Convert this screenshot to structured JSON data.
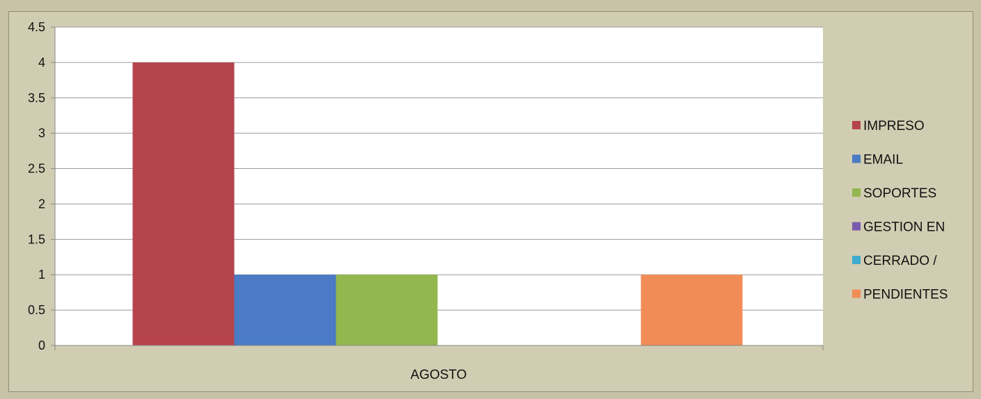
{
  "chart_data": {
    "type": "bar",
    "categories": [
      "AGOSTO"
    ],
    "series": [
      {
        "name": "IMPRESO",
        "values": [
          4
        ],
        "color": "#b5444f"
      },
      {
        "name": "EMAIL",
        "values": [
          1
        ],
        "color": "#4a7bc4"
      },
      {
        "name": "SOPORTES",
        "values": [
          1
        ],
        "color": "#93b74f"
      },
      {
        "name": "GESTION EN",
        "values": [
          0
        ],
        "color": "#7a5aae"
      },
      {
        "name": "CERRADO /",
        "values": [
          0
        ],
        "color": "#3eaccf"
      },
      {
        "name": "PENDIENTES",
        "values": [
          1
        ],
        "color": "#f28c57"
      }
    ],
    "yticks": [
      "0",
      "0.5",
      "1",
      "1.5",
      "2",
      "2.5",
      "3",
      "3.5",
      "4",
      "4.5"
    ],
    "ylim": [
      0,
      4.5
    ],
    "grid": true,
    "legend": "right",
    "title": "",
    "xlabel": "",
    "ylabel": ""
  }
}
